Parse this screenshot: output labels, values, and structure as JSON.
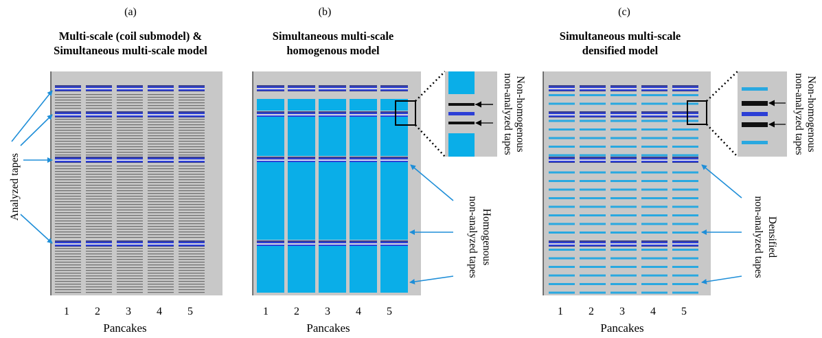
{
  "colors": {
    "background_panel": "#c8c8c8",
    "analyzed_tape": "#2c3fd6",
    "analyzed_tape_dark": "#3a3f8a",
    "grey_tape": "#6b6b6b",
    "homogenous_fill": "#0aaee8",
    "densified_tape": "#29a8e0",
    "annotation_line": "#1e8ed8",
    "black": "#000000"
  },
  "panels": [
    {
      "id": "a",
      "letter": "(a)",
      "title_line1": "Multi-scale (coil submodel) &",
      "title_line2": "Simultaneous multi-scale model",
      "x_label": "Pancakes",
      "pancakes": [
        "1",
        "2",
        "3",
        "4",
        "5"
      ],
      "annotation": "Analyzed tapes"
    },
    {
      "id": "b",
      "letter": "(b)",
      "title_line1": "Simultaneous multi-scale",
      "title_line2": "homogenous model",
      "x_label": "Pancakes",
      "pancakes": [
        "1",
        "2",
        "3",
        "4",
        "5"
      ],
      "annotation": [
        "Homogenous",
        "non-analyzed tapes"
      ],
      "zoom_annotation": [
        "Non-homogenous",
        "non-analyzed tapes"
      ]
    },
    {
      "id": "c",
      "letter": "(c)",
      "title_line1": "Simultaneous multi-scale",
      "title_line2": "densified model",
      "x_label": "Pancakes",
      "pancakes": [
        "1",
        "2",
        "3",
        "4",
        "5"
      ],
      "annotation": [
        "Densified",
        "non-analyzed tapes"
      ],
      "zoom_annotation": [
        "Non-homogenous",
        "non-analyzed tapes"
      ]
    }
  ]
}
